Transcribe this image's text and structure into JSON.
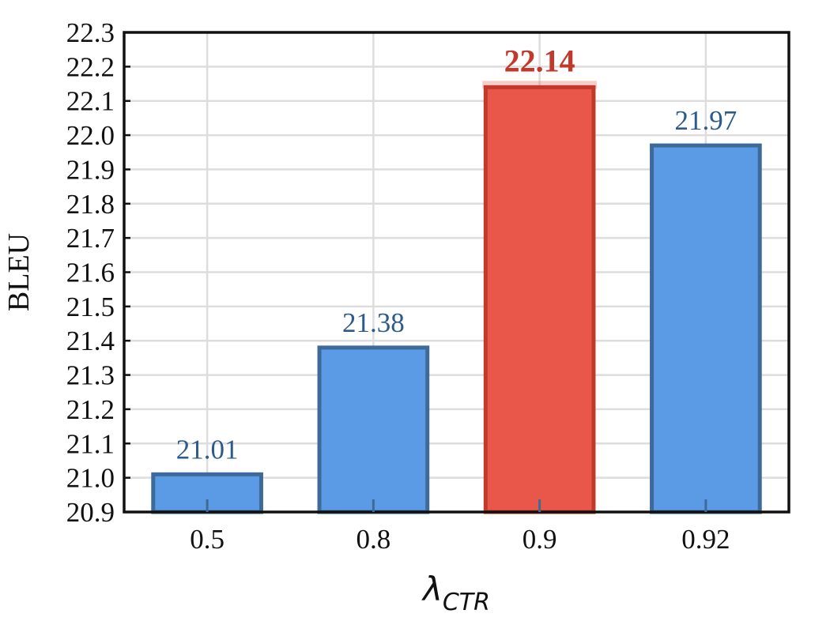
{
  "chart_data": {
    "type": "bar",
    "categories": [
      "0.5",
      "0.8",
      "0.9",
      "0.92"
    ],
    "values": [
      21.01,
      21.38,
      22.14,
      21.97
    ],
    "value_labels": [
      "21.01",
      "21.38",
      "22.14",
      "21.97"
    ],
    "highlight_index": 2,
    "xlabel": {
      "main": "λ",
      "sub": "CTR"
    },
    "ylabel": "BLEU",
    "ylim": [
      20.9,
      22.3
    ],
    "yticks": [
      "20.9",
      "21.0",
      "21.1",
      "21.2",
      "21.3",
      "21.4",
      "21.5",
      "21.6",
      "21.7",
      "21.8",
      "21.9",
      "22.0",
      "22.1",
      "22.2",
      "22.3"
    ],
    "grid": true,
    "colors": {
      "bar": "#5b9be6",
      "bar_edge": "#3e6a9a",
      "highlight": "#e8574a",
      "highlight_edge": "#c0392b",
      "label": "#2e5a8a",
      "highlight_label": "#c0392b",
      "grid": "#dddddd"
    }
  }
}
